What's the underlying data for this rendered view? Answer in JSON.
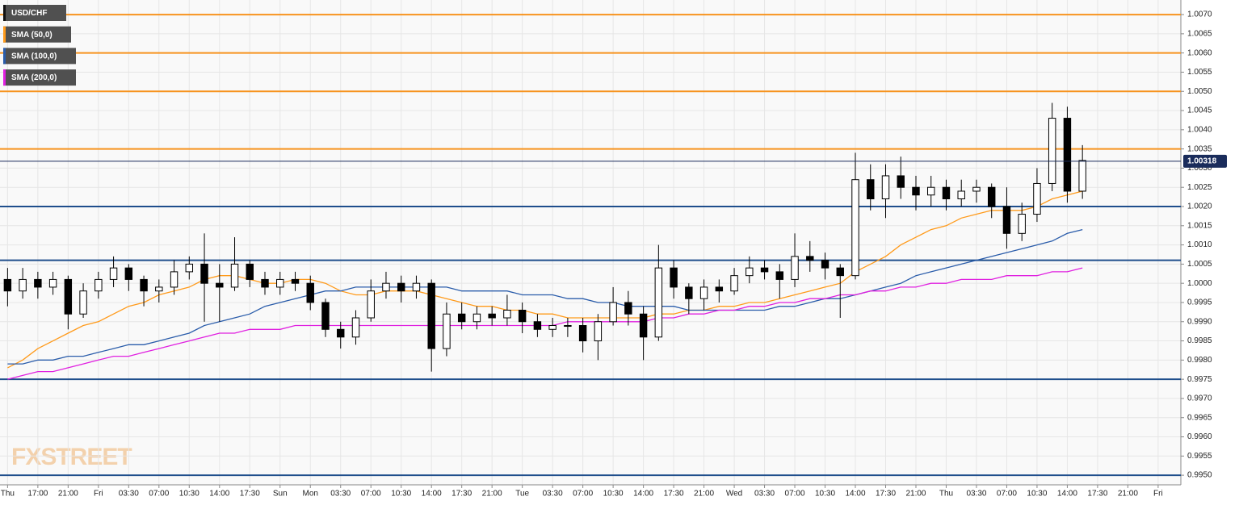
{
  "chart_data": {
    "type": "candlestick",
    "watermark": "FXSTREET",
    "categories": [
      "Thu",
      null,
      "17:00",
      null,
      "21:00",
      null,
      "Fri",
      null,
      "03:30",
      null,
      "07:00",
      null,
      "10:30",
      null,
      "14:00",
      null,
      "17:30",
      null,
      "Sun",
      null,
      "Mon",
      null,
      "03:30",
      null,
      "07:00",
      null,
      "10:30",
      null,
      "14:00",
      null,
      "17:30",
      null,
      "21:00",
      null,
      "Tue",
      null,
      "03:30",
      null,
      "07:00",
      null,
      "10:30",
      null,
      "14:00",
      null,
      "17:30",
      null,
      "21:00",
      null,
      "Wed",
      null,
      "03:30",
      null,
      "07:00",
      null,
      "10:30",
      null,
      "14:00",
      null,
      "17:30",
      null,
      "21:00",
      null,
      "Thu",
      null,
      "03:30",
      null,
      "07:00",
      null,
      "10:30",
      null,
      "14:00",
      null,
      "17:30",
      null,
      "21:00",
      null,
      "Fri",
      null
    ],
    "series": [
      {
        "name": "USD/CHF",
        "color": "#000000",
        "open": [
          1.0001,
          0.9998,
          1.0001,
          0.9999,
          1.0001,
          0.9992,
          0.9998,
          1.0001,
          1.0004,
          1.0001,
          0.9998,
          0.9999,
          1.0003,
          1.0005,
          1.0,
          0.9999,
          1.0005,
          1.0001,
          0.9999,
          1.0001,
          1.0,
          0.9995,
          0.9988,
          0.9986,
          0.9991,
          0.9998,
          1.0,
          0.9998,
          1.0,
          0.9983,
          0.9992,
          0.999,
          0.9992,
          0.9991,
          0.9993,
          0.999,
          0.9988,
          0.9989,
          0.9989,
          0.9985,
          0.999,
          0.9995,
          0.9992,
          0.9986,
          1.0004,
          0.9999,
          0.9996,
          0.9999,
          0.9998,
          1.0002,
          1.0004,
          1.0003,
          1.0001,
          1.0007,
          1.0006,
          1.0004,
          1.0002,
          1.0027,
          1.0022,
          1.0028,
          1.0025,
          1.0023,
          1.0025,
          1.0022,
          1.0024,
          1.0025,
          1.002,
          1.0013,
          1.0018,
          1.0026,
          1.0043,
          1.0024,
          null,
          null,
          null,
          null,
          null,
          null
        ],
        "high": [
          1.0004,
          1.0004,
          1.0003,
          1.0003,
          1.0002,
          1.0,
          1.0003,
          1.0007,
          1.0005,
          1.0002,
          1.0001,
          1.0006,
          1.0007,
          1.0013,
          1.0005,
          1.0012,
          1.0006,
          1.0003,
          1.0003,
          1.0003,
          1.0002,
          0.9996,
          0.999,
          0.9993,
          1.0001,
          1.0003,
          1.0002,
          1.0002,
          1.0001,
          0.9995,
          0.9995,
          0.9994,
          0.9994,
          0.9997,
          0.9995,
          0.9992,
          0.9991,
          0.9991,
          0.9991,
          0.9992,
          0.9999,
          0.9998,
          0.9994,
          1.001,
          1.0006,
          1.0,
          1.0001,
          1.0001,
          1.0004,
          1.0007,
          1.0006,
          1.0005,
          1.0013,
          1.0011,
          1.0008,
          1.0005,
          1.0034,
          1.0031,
          1.0031,
          1.0033,
          1.0028,
          1.0028,
          1.0027,
          1.0027,
          1.0027,
          1.0026,
          1.0025,
          1.0021,
          1.003,
          1.0047,
          1.0046,
          1.0036,
          null,
          null,
          null,
          null,
          null,
          null
        ],
        "low": [
          0.9994,
          0.9996,
          0.9996,
          0.9997,
          0.9988,
          0.9991,
          0.9996,
          0.9999,
          0.9998,
          0.9994,
          0.9995,
          0.9997,
          1.0001,
          0.999,
          0.999,
          0.9998,
          0.9999,
          0.9997,
          0.9997,
          0.9998,
          0.9993,
          0.9986,
          0.9983,
          0.9984,
          0.999,
          0.9996,
          0.9995,
          0.9996,
          0.9977,
          0.9981,
          0.9988,
          0.9988,
          0.9989,
          0.9989,
          0.9987,
          0.9986,
          0.9986,
          0.9986,
          0.9982,
          0.998,
          0.9989,
          0.9989,
          0.998,
          0.9985,
          0.9996,
          0.9992,
          0.9993,
          0.9995,
          0.9997,
          1.0,
          1.0001,
          0.9996,
          0.9999,
          1.0003,
          1.0001,
          0.9991,
          1.0001,
          1.0019,
          1.0017,
          1.0022,
          1.0019,
          1.002,
          1.0019,
          1.002,
          1.0021,
          1.0017,
          1.0009,
          1.0011,
          1.0016,
          1.0024,
          1.0021,
          1.0022,
          null,
          null,
          null,
          null,
          null,
          null
        ],
        "close": [
          0.9998,
          1.0001,
          0.9999,
          1.0001,
          0.9992,
          0.9998,
          1.0001,
          1.0004,
          1.0001,
          0.9998,
          0.9999,
          1.0003,
          1.0005,
          1.0,
          0.9999,
          1.0005,
          1.0001,
          0.9999,
          1.0001,
          1.0,
          0.9995,
          0.9988,
          0.9986,
          0.9991,
          0.9998,
          1.0,
          0.9998,
          1.0,
          0.9983,
          0.9992,
          0.999,
          0.9992,
          0.9991,
          0.9993,
          0.999,
          0.9988,
          0.9989,
          0.9989,
          0.9985,
          0.999,
          0.9995,
          0.9992,
          0.9986,
          1.0004,
          0.9999,
          0.9996,
          0.9999,
          0.9998,
          1.0002,
          1.0004,
          1.0003,
          1.0001,
          1.0007,
          1.0006,
          1.0004,
          1.0002,
          1.0027,
          1.0022,
          1.0028,
          1.0025,
          1.0023,
          1.0025,
          1.0022,
          1.0024,
          1.0025,
          1.002,
          1.0013,
          1.0018,
          1.0026,
          1.0043,
          1.0024,
          1.0032,
          null,
          null,
          null,
          null,
          null,
          null
        ]
      },
      {
        "name": "SMA (50,0)",
        "color": "#ff9a1a",
        "values": [
          0.9978,
          0.998,
          0.9983,
          0.9985,
          0.9987,
          0.9989,
          0.999,
          0.9992,
          0.9994,
          0.9995,
          0.9997,
          0.9998,
          0.9999,
          1.0001,
          1.0002,
          1.0002,
          1.0001,
          1.0,
          1.0,
          1.0001,
          1.0001,
          1.0,
          0.9998,
          0.9997,
          0.9997,
          0.9998,
          0.9998,
          0.9998,
          0.9997,
          0.9996,
          0.9995,
          0.9994,
          0.9994,
          0.9993,
          0.9993,
          0.9992,
          0.9992,
          0.9991,
          0.9991,
          0.9991,
          0.9991,
          0.9991,
          0.9991,
          0.9992,
          0.9992,
          0.9993,
          0.9993,
          0.9994,
          0.9994,
          0.9995,
          0.9995,
          0.9996,
          0.9997,
          0.9998,
          0.9999,
          1.0,
          1.0003,
          1.0005,
          1.0007,
          1.001,
          1.0012,
          1.0014,
          1.0015,
          1.0017,
          1.0018,
          1.0019,
          1.0019,
          1.0019,
          1.002,
          1.0022,
          1.0023,
          1.0024,
          null,
          null,
          null,
          null,
          null,
          null
        ]
      },
      {
        "name": "SMA (100,0)",
        "color": "#2a5caa",
        "values": [
          0.9979,
          0.9979,
          0.998,
          0.998,
          0.9981,
          0.9981,
          0.9982,
          0.9983,
          0.9984,
          0.9984,
          0.9985,
          0.9986,
          0.9987,
          0.9989,
          0.999,
          0.9991,
          0.9992,
          0.9994,
          0.9995,
          0.9996,
          0.9997,
          0.9998,
          0.9998,
          0.9999,
          0.9999,
          0.9999,
          0.9999,
          0.9999,
          0.9999,
          0.9999,
          0.9998,
          0.9998,
          0.9998,
          0.9998,
          0.9997,
          0.9997,
          0.9997,
          0.9996,
          0.9996,
          0.9995,
          0.9995,
          0.9994,
          0.9994,
          0.9994,
          0.9994,
          0.9993,
          0.9993,
          0.9993,
          0.9993,
          0.9993,
          0.9993,
          0.9994,
          0.9994,
          0.9995,
          0.9996,
          0.9996,
          0.9997,
          0.9998,
          0.9999,
          1.0,
          1.0002,
          1.0003,
          1.0004,
          1.0005,
          1.0006,
          1.0007,
          1.0008,
          1.0009,
          1.001,
          1.0011,
          1.0013,
          1.0014,
          null,
          null,
          null,
          null,
          null,
          null
        ]
      },
      {
        "name": "SMA (200,0)",
        "color": "#e020e0",
        "values": [
          0.9975,
          0.9976,
          0.9977,
          0.9977,
          0.9978,
          0.9979,
          0.998,
          0.9981,
          0.9981,
          0.9982,
          0.9983,
          0.9984,
          0.9985,
          0.9986,
          0.9987,
          0.9987,
          0.9988,
          0.9988,
          0.9988,
          0.9989,
          0.9989,
          0.9989,
          0.9989,
          0.9989,
          0.9989,
          0.9989,
          0.9989,
          0.9989,
          0.9989,
          0.9989,
          0.9989,
          0.9989,
          0.9989,
          0.9989,
          0.9989,
          0.9989,
          0.9989,
          0.999,
          0.999,
          0.999,
          0.999,
          0.999,
          0.999,
          0.9991,
          0.9991,
          0.9992,
          0.9992,
          0.9993,
          0.9993,
          0.9994,
          0.9994,
          0.9995,
          0.9995,
          0.9996,
          0.9996,
          0.9997,
          0.9997,
          0.9998,
          0.9998,
          0.9999,
          0.9999,
          1.0,
          1.0,
          1.0001,
          1.0001,
          1.0001,
          1.0002,
          1.0002,
          1.0002,
          1.0003,
          1.0003,
          1.0004,
          null,
          null,
          null,
          null,
          null,
          null
        ]
      }
    ],
    "levels": [
      {
        "value": 1.007,
        "color": "#f7931e"
      },
      {
        "value": 1.006,
        "color": "#f7931e"
      },
      {
        "value": 1.005,
        "color": "#f7931e"
      },
      {
        "value": 1.0035,
        "color": "#f7931e"
      },
      {
        "value": 1.002,
        "color": "#1f4e8c"
      },
      {
        "value": 1.0006,
        "color": "#1f4e8c"
      },
      {
        "value": 0.9975,
        "color": "#1f4e8c"
      },
      {
        "value": 0.995,
        "color": "#1f4e8c"
      }
    ],
    "last_price": 1.00318,
    "last_price_color": "#1a2c5b",
    "ylim": [
      0.99475,
      1.00738
    ],
    "yticks": [
      {
        "value": 0.995,
        "label": "0.9950"
      },
      0.9955,
      {
        "value": 0.996,
        "label": "0.9960"
      },
      0.9965,
      {
        "value": 0.997,
        "label": "0.9970"
      },
      0.9975,
      {
        "value": 0.998,
        "label": "0.9980"
      },
      0.9985,
      {
        "value": 0.999,
        "label": "0.9990"
      },
      0.9995,
      {
        "value": 1,
        "label": "1.0000"
      },
      1.0005,
      {
        "value": 1.001,
        "label": "1.0010"
      },
      1.0015,
      {
        "value": 1.002,
        "label": "1.0020"
      },
      1.0025,
      {
        "value": 1.003,
        "label": "1.0030"
      },
      1.0035,
      {
        "value": 1.004,
        "label": "1.0040"
      },
      1.0045,
      {
        "value": 1.005,
        "label": "1.0050"
      },
      1.0055,
      {
        "value": 1.006,
        "label": "1.0060"
      },
      1.0065,
      {
        "value": 1.007,
        "label": "1.0070"
      }
    ],
    "grid": true
  }
}
